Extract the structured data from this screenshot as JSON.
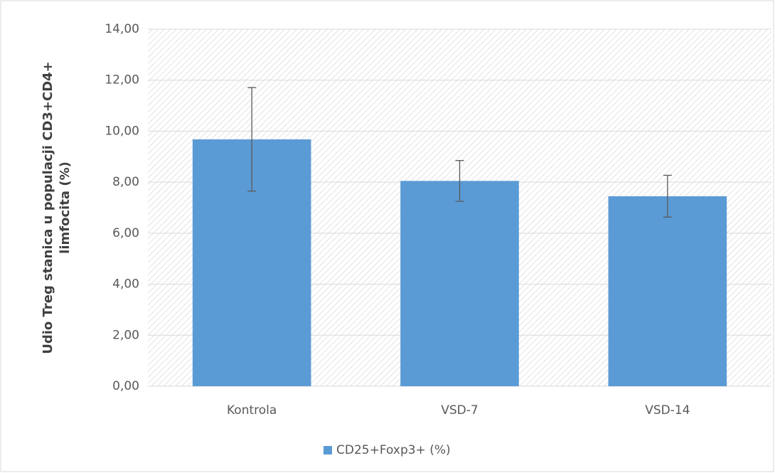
{
  "chart_data": {
    "type": "bar",
    "y_label": [
      "Udio Treg stanica u populacji CD3+CD4+",
      "limfocita (%)"
    ],
    "categories": [
      "Kontrola",
      "VSD-7",
      "VSD-14"
    ],
    "series": [
      {
        "name": "CD25+Foxp3+ (%)",
        "color": "#5b9bd5",
        "values": [
          9.68,
          8.05,
          7.45
        ],
        "errors": [
          2.03,
          0.8,
          0.82
        ]
      }
    ],
    "ylim": [
      0,
      14
    ],
    "yticks": [
      {
        "value": 0,
        "label": "0,00"
      },
      {
        "value": 2,
        "label": "2,00"
      },
      {
        "value": 4,
        "label": "4,00"
      },
      {
        "value": 6,
        "label": "6,00"
      },
      {
        "value": 8,
        "label": "8,00"
      },
      {
        "value": 10,
        "label": "10,00"
      },
      {
        "value": 12,
        "label": "12,00"
      },
      {
        "value": 14,
        "label": "14,00"
      }
    ],
    "grid": true,
    "legend": "bottom"
  }
}
